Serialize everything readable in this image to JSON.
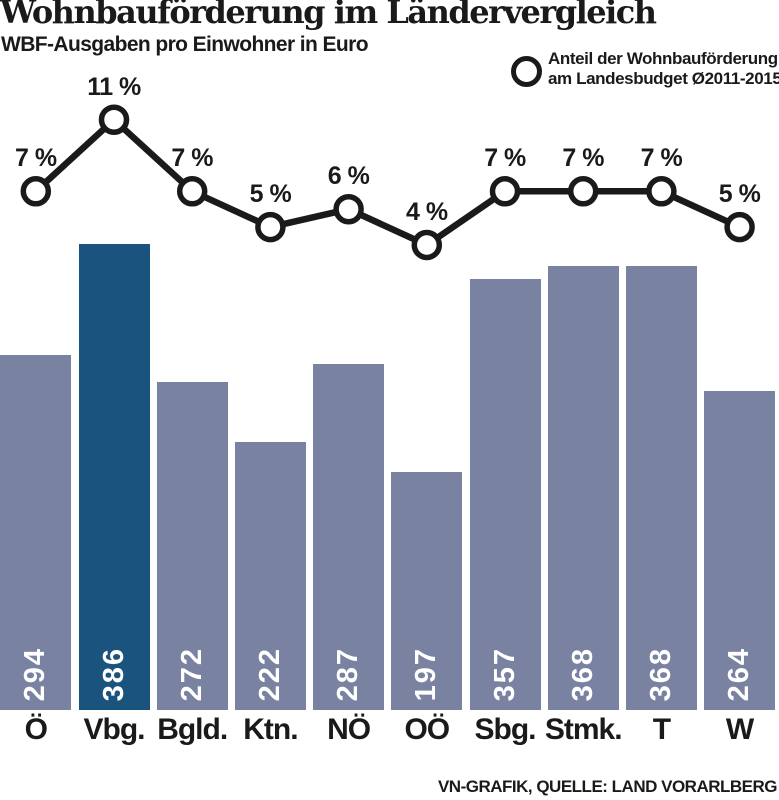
{
  "header": {
    "title": "Wohnbauförderung im Ländervergleich",
    "subtitle": "WBF-Ausgaben pro Einwohner in Euro"
  },
  "legend": {
    "marker": "circle-marker",
    "line1": "Anteil der Wohnbauförderung",
    "line2": "am Landesbudget Ø2011-2015"
  },
  "footer": {
    "credit": "VN-GRAFIK, QUELLE: LAND VORARLBERG"
  },
  "colors": {
    "bar_default": "#7a82a2",
    "bar_highlight": "#1b537f",
    "line": "#1a1a1a",
    "marker_fill": "#ffffff",
    "text": "#1a1a1a",
    "bar_value_text": "#ffffff"
  },
  "chart_data": {
    "type": "bar",
    "title": "Wohnbauförderung im Ländervergleich",
    "subtitle": "WBF-Ausgaben pro Einwohner in Euro",
    "categories": [
      "Ö",
      "Vbg.",
      "Bgld.",
      "Ktn.",
      "NÖ",
      "OÖ",
      "Sbg.",
      "Stmk.",
      "T",
      "W"
    ],
    "series": [
      {
        "name": "WBF-Ausgaben pro Einwohner in Euro",
        "type": "bar",
        "unit": "Euro",
        "values": [
          294,
          386,
          272,
          222,
          287,
          197,
          357,
          368,
          368,
          264
        ]
      },
      {
        "name": "Anteil der Wohnbauförderung am Landesbudget Ø2011-2015",
        "type": "line",
        "unit": "%",
        "values": [
          7,
          11,
          7,
          5,
          6,
          4,
          7,
          7,
          7,
          5
        ]
      }
    ],
    "highlight_category": "Vbg.",
    "value_label_style": "inside-bar-rotated-white",
    "pct_label_suffix": " %",
    "legend_position": "top-right",
    "grid": false,
    "axes_hidden": true,
    "source": "VN-GRAFIK, QUELLE: LAND VORARLBERG"
  }
}
